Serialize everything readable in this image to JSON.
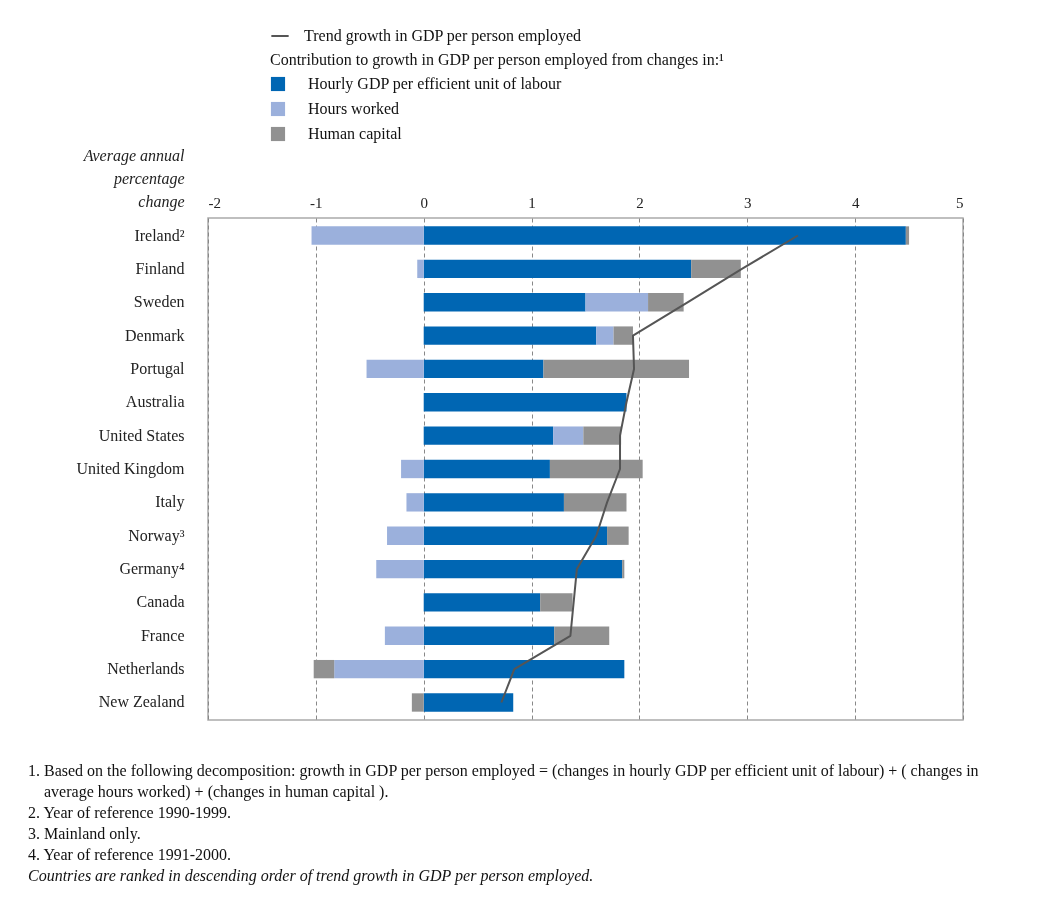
{
  "chart_data": {
    "type": "bar",
    "orientation": "horizontal",
    "stacked": true,
    "categories": [
      "Ireland²",
      "Finland",
      "Sweden",
      "Denmark",
      "Portugal",
      "Australia",
      "United States",
      "United Kingdom",
      "Italy",
      "Norway³",
      "Germany⁴",
      "Canada",
      "France",
      "Netherlands",
      "New Zealand"
    ],
    "series": [
      {
        "name": "Hourly GDP per efficient unit of labour",
        "color": "#0066b3",
        "values": [
          4.47,
          2.48,
          1.5,
          1.6,
          1.11,
          1.88,
          1.2,
          1.17,
          1.3,
          1.7,
          1.84,
          1.08,
          1.21,
          1.86,
          0.83
        ]
      },
      {
        "name": "Hours worked",
        "color": "#9bb0dc",
        "values": [
          -1.04,
          -0.06,
          0.58,
          0.16,
          -0.53,
          null,
          0.28,
          -0.21,
          -0.16,
          -0.34,
          -0.44,
          null,
          -0.36,
          -0.83,
          null
        ]
      },
      {
        "name": "Human capital",
        "color": "#919191",
        "values": [
          0.03,
          0.46,
          0.33,
          0.18,
          1.35,
          null,
          0.35,
          0.86,
          0.58,
          0.2,
          0.02,
          0.3,
          0.51,
          -0.19,
          -0.11
        ]
      },
      {
        "name": "Trend growth in GDP per person employed",
        "type": "line",
        "color": "#555555",
        "values": [
          3.47,
          2.95,
          2.45,
          1.94,
          1.95,
          1.88,
          1.82,
          1.82,
          1.7,
          1.6,
          1.42,
          1.39,
          1.36,
          0.84,
          0.72
        ]
      }
    ],
    "xlabel": "Average annual percentage change",
    "legend_title": "Contribution to growth in GDP per person employed from changes in:¹",
    "legend": "top",
    "xlim": [
      -2,
      5
    ],
    "xticks": [
      -2,
      -1,
      0,
      1,
      2,
      3,
      4,
      5
    ],
    "grid": "x",
    "annotations": [
      "1. Based on the following decomposition: growth  in GDP per person employed = (changes in hourly GDP per efficient unit of labour) + ( changes in average hours worked)  + (changes in human capital ).",
      "2. Year of reference 1990-1999.",
      "3. Mainland only.",
      "4. Year of reference 1991-2000.",
      "Countries are ranked in descending order of trend growth in GDP per person employed."
    ]
  }
}
